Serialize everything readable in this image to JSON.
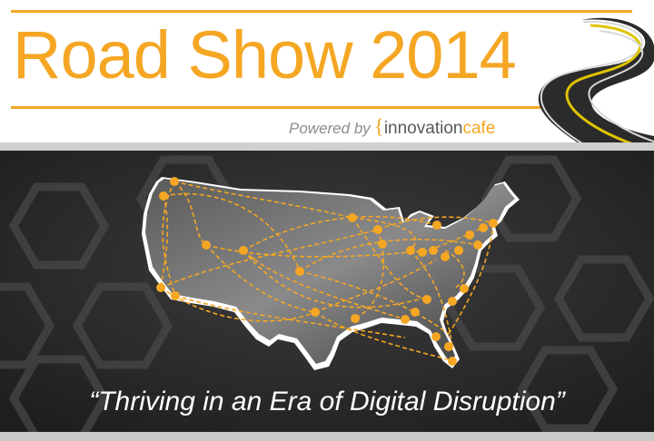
{
  "header": {
    "title": "Road Show 2014",
    "powered_by": "Powered by",
    "brand_brace": "{",
    "brand_part1": "innovation",
    "brand_part2": "cafe"
  },
  "hero": {
    "tagline": "“Thriving in an Era of Digital Disruption”"
  },
  "colors": {
    "accent": "#f5a623",
    "background_dark": "#2e2e2e",
    "text_light": "#ffffff"
  },
  "icons": {
    "road": "winding-road-icon",
    "map": "usa-map"
  }
}
